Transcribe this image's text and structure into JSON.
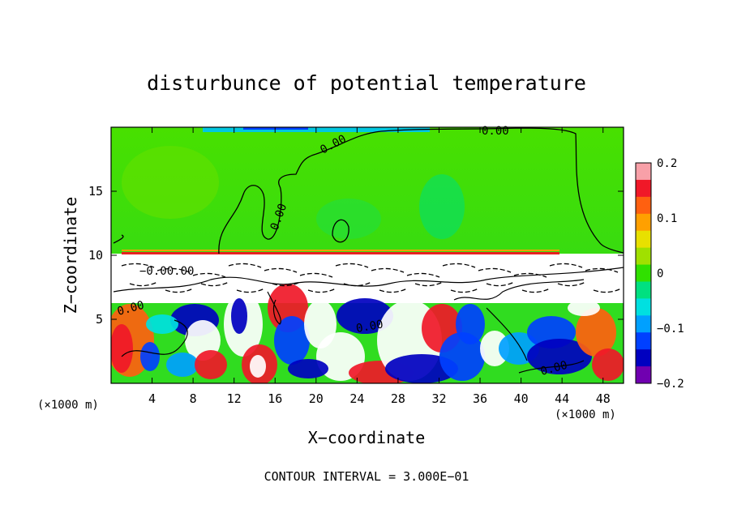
{
  "chart_data": {
    "type": "heatmap",
    "title": "disturbunce of potential temperature",
    "xlabel": "X−coordinate",
    "ylabel": "Z−coordinate",
    "x_unit_left": "(×1000 m)",
    "x_unit_right": "(×1000 m)",
    "xlim": [
      0,
      50
    ],
    "ylim": [
      0,
      20
    ],
    "x_ticks": [
      4,
      8,
      12,
      16,
      20,
      24,
      28,
      32,
      36,
      40,
      44,
      48
    ],
    "y_ticks": [
      5,
      10,
      15
    ],
    "x_tick_labels": [
      "4",
      "8",
      "12",
      "16",
      "20",
      "24",
      "28",
      "32",
      "36",
      "40",
      "44",
      "48"
    ],
    "y_tick_labels": [
      "5",
      "10",
      "15"
    ],
    "colorbar": {
      "min": -0.2,
      "max": 0.2,
      "ticks": [
        0.2,
        0.1,
        0,
        -0.1,
        -0.2
      ],
      "tick_labels": [
        "0.2",
        "0.1",
        "0",
        "−0.1",
        "−0.2"
      ],
      "colors": [
        "#f8a0a8",
        "#f01828",
        "#ff6010",
        "#ffa000",
        "#e8e000",
        "#a0e000",
        "#30e000",
        "#00e080",
        "#00e0e0",
        "#00a0ff",
        "#0040ff",
        "#0000c0",
        "#7000b0"
      ]
    },
    "contour_labels": [
      "0.00",
      "0.00",
      "0.00",
      "−0.00.00",
      "0.00",
      "0.00",
      "0.00"
    ],
    "footer": "CONTOUR INTERVAL = 3.000E−01"
  }
}
